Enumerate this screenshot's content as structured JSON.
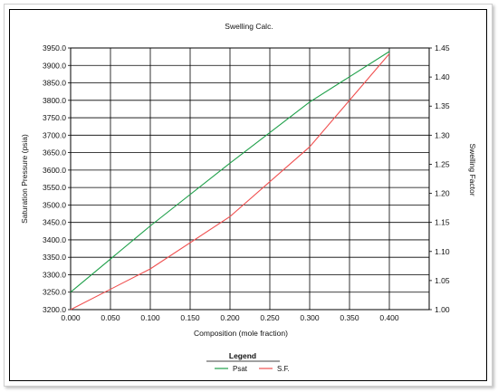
{
  "chart_data": {
    "type": "line",
    "title": "Swelling Calc.",
    "xlabel": "Composition (mole fraction)",
    "ylabel": "Saturation Pressure (psia)",
    "y2label": "Swelling Factor",
    "xlim": [
      0.0,
      0.45
    ],
    "ylim": [
      3200.0,
      3950.0
    ],
    "y2lim": [
      1.0,
      1.45
    ],
    "x_ticks": [
      "0.000",
      "0.050",
      "0.100",
      "0.150",
      "0.200",
      "0.250",
      "0.300",
      "0.350",
      "0.400"
    ],
    "y_ticks": [
      "3200.0",
      "3250.0",
      "3300.0",
      "3350.0",
      "3400.0",
      "3450.0",
      "3500.0",
      "3550.0",
      "3600.0",
      "3650.0",
      "3700.0",
      "3750.0",
      "3800.0",
      "3850.0",
      "3900.0",
      "3950.0"
    ],
    "y2_ticks": [
      "1.00",
      "1.05",
      "1.10",
      "1.15",
      "1.20",
      "1.25",
      "1.30",
      "1.35",
      "1.40",
      "1.45"
    ],
    "grid": true,
    "legend": {
      "title": "Legend",
      "position": "bottom-center"
    },
    "series": [
      {
        "name": "Psat",
        "color": "#1fa04a",
        "axis": "left",
        "x": [
          0.0,
          0.1,
          0.2,
          0.3,
          0.4
        ],
        "y": [
          3250,
          3440,
          3620,
          3795,
          3940
        ]
      },
      {
        "name": "S.F.",
        "color": "#f05050",
        "axis": "right",
        "x": [
          0.0,
          0.1,
          0.2,
          0.3,
          0.4
        ],
        "y": [
          1.0,
          1.07,
          1.16,
          1.28,
          1.44
        ]
      }
    ]
  }
}
